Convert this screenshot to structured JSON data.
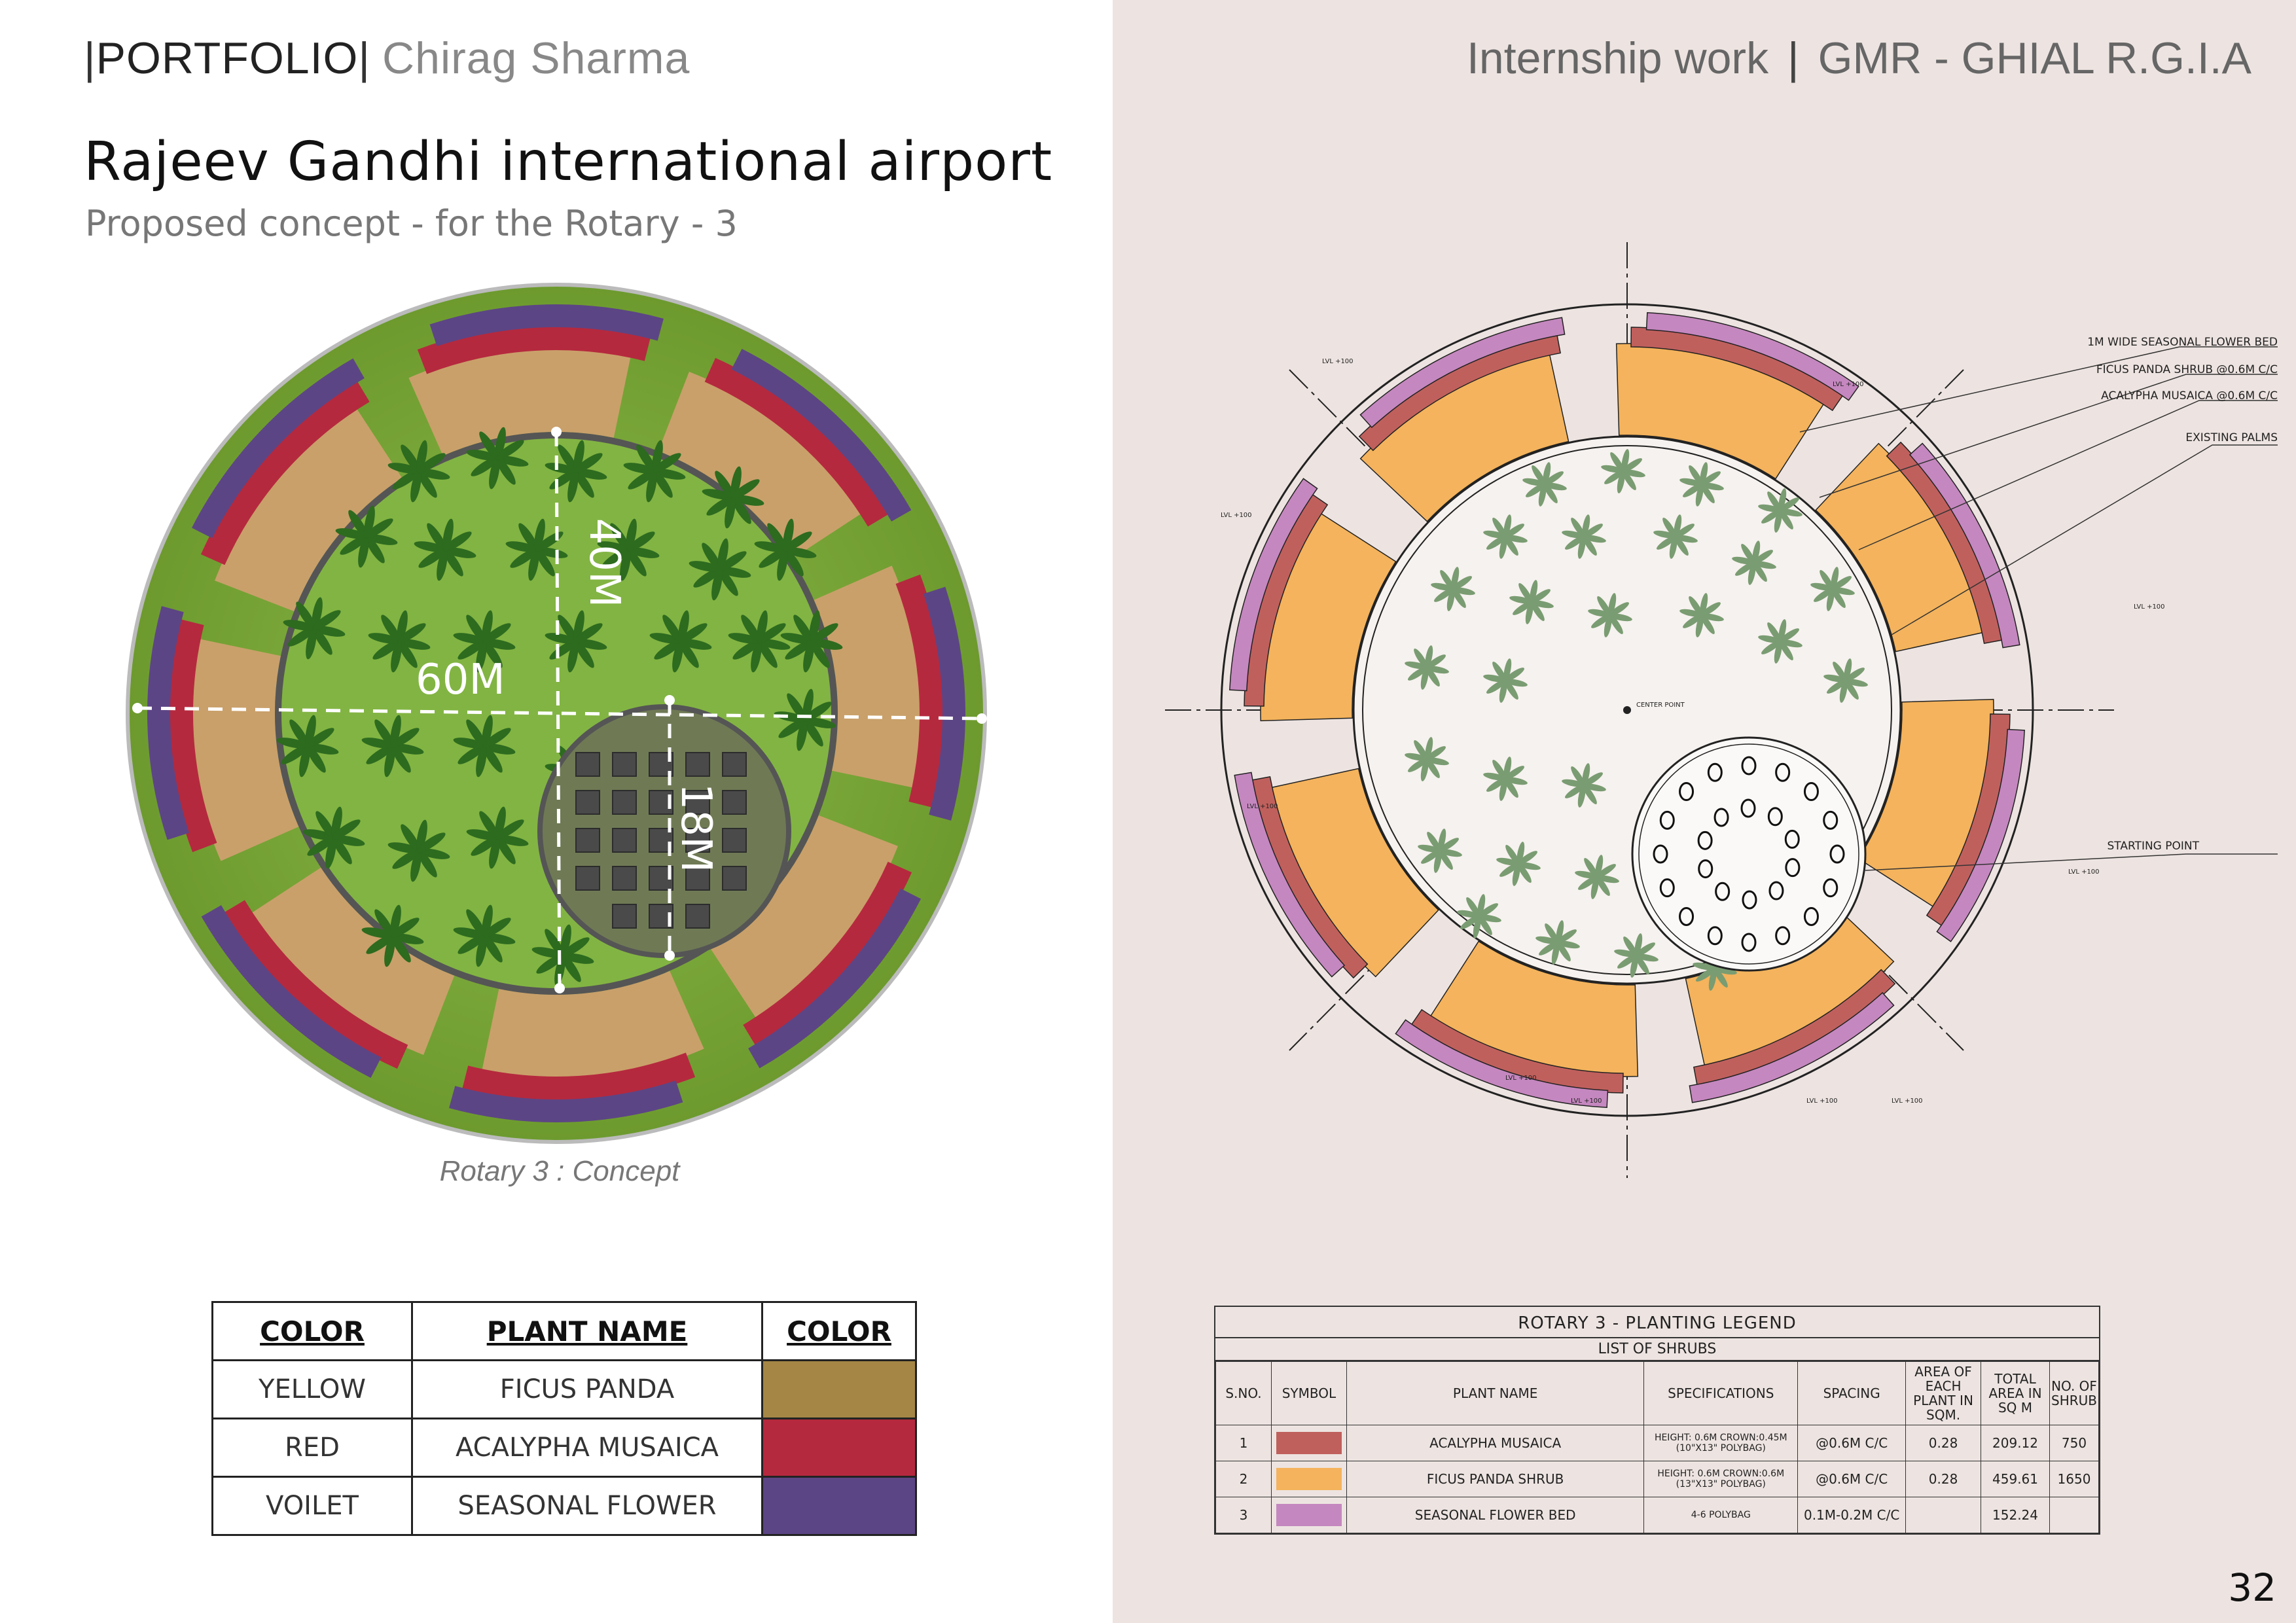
{
  "header": {
    "portfolio_label": "PORTFOLIO",
    "author": "Chirag Sharma",
    "right_title": "Internship work",
    "right_subtitle": "GMR - GHIAL R.G.I.A"
  },
  "page": {
    "title": "Rajeev Gandhi international airport",
    "subtitle": "Proposed concept -  for the Rotary - 3",
    "page_number": "32"
  },
  "render": {
    "caption": "Rotary 3 : Concept",
    "dim_outer": "60M",
    "dim_inner": "40M",
    "dim_pavers": "18M"
  },
  "color_table": {
    "headers": [
      "COLOR",
      "PLANT NAME",
      "COLOR"
    ],
    "rows": [
      {
        "color": "YELLOW",
        "plant": "FICUS PANDA",
        "swatch": "#a58645"
      },
      {
        "color": "RED",
        "plant": "ACALYPHA MUSAICA",
        "swatch": "#b5293e"
      },
      {
        "color": "VOILET",
        "plant": "SEASONAL FLOWER",
        "swatch": "#5c4585"
      }
    ]
  },
  "plan": {
    "callouts": [
      "1M WIDE SEASONAL FLOWER BED",
      "FICUS PANDA SHRUB @0.6M C/C",
      "ACALYPHA MUSAICA @0.6M C/C",
      "EXISTING PALMS",
      "STARTING POINT"
    ],
    "center_point": "CENTER POINT",
    "level_label": "LVL +100"
  },
  "legend": {
    "title": "ROTARY 3 -    PLANTING LEGEND",
    "subtitle": "LIST OF SHRUBS",
    "headers": [
      "S.NO.",
      "SYMBOL",
      "PLANT NAME",
      "SPECIFICATIONS",
      "SPACING",
      "AREA OF EACH PLANT IN SQM.",
      "TOTAL AREA IN SQ M",
      "NO. OF SHRUB"
    ],
    "rows": [
      {
        "sno": "1",
        "symbol_color": "#c0605d",
        "plant": "ACALYPHA MUSAICA",
        "spec": "HEIGHT: 0.6M CROWN:0.45M (10\"X13\" POLYBAG)",
        "spacing": "@0.6M C/C",
        "area_each": "0.28",
        "total_area": "209.12",
        "count": "750"
      },
      {
        "sno": "2",
        "symbol_color": "#f4b35c",
        "plant": "FICUS PANDA SHRUB",
        "spec": "HEIGHT: 0.6M CROWN:0.6M (13\"X13\" POLYBAG)",
        "spacing": "@0.6M C/C",
        "area_each": "0.28",
        "total_area": "459.61",
        "count": "1650"
      },
      {
        "sno": "3",
        "symbol_color": "#c587bf",
        "plant": "SEASONAL FLOWER BED",
        "spec": "4-6 POLYBAG",
        "spacing": "0.1M-0.2M C/C",
        "area_each": "",
        "total_area": "152.24",
        "count": ""
      }
    ]
  }
}
